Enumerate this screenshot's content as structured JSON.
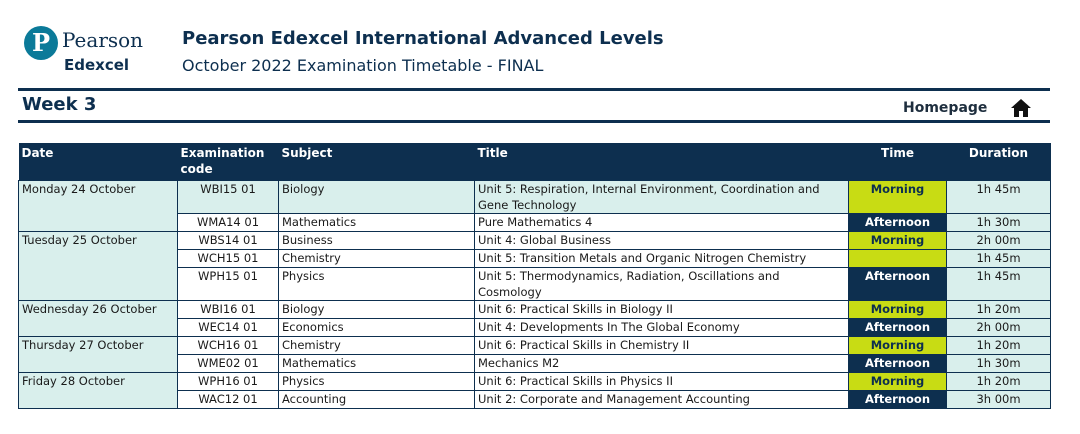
{
  "logo": {
    "glyph": "P",
    "brand": "Pearson",
    "sub": "Edexcel"
  },
  "header": {
    "title": "Pearson Edexcel International Advanced Levels",
    "subtitle": "October 2022 Examination Timetable - FINAL"
  },
  "week": "Week 3",
  "homepage": "Homepage",
  "columns": {
    "date": "Date",
    "code": "Examination code",
    "subject": "Subject",
    "title": "Title",
    "time": "Time",
    "duration": "Duration"
  },
  "rows": [
    {
      "date": "Monday 24 October",
      "code": "WBI15 01",
      "subject": "Biology",
      "title": "Unit 5: Respiration, Internal Environment, Coordination and Gene Technology",
      "time": "Morning",
      "duration": "1h 45m"
    },
    {
      "date": "",
      "code": "WMA14 01",
      "subject": "Mathematics",
      "title": "Pure Mathematics 4",
      "time": "Afternoon",
      "duration": "1h 30m"
    },
    {
      "date": "Tuesday 25 October",
      "code": "WBS14 01",
      "subject": "Business",
      "title": "Unit 4: Global Business",
      "time": "Morning",
      "duration": "2h 00m"
    },
    {
      "date": "",
      "code": "WCH15 01",
      "subject": "Chemistry",
      "title": "Unit 5: Transition Metals and Organic Nitrogen Chemistry",
      "time": "",
      "duration": "1h 45m"
    },
    {
      "date": "",
      "code": "WPH15 01",
      "subject": "Physics",
      "title": "Unit 5: Thermodynamics, Radiation, Oscillations and Cosmology",
      "time": "Afternoon",
      "duration": "1h 45m"
    },
    {
      "date": "Wednesday 26 October",
      "code": "WBI16 01",
      "subject": "Biology",
      "title": "Unit 6: Practical Skills in Biology II",
      "time": "Morning",
      "duration": "1h 20m"
    },
    {
      "date": "",
      "code": "WEC14 01",
      "subject": "Economics",
      "title": "Unit 4: Developments In The Global Economy",
      "time": "Afternoon",
      "duration": "2h 00m"
    },
    {
      "date": "Thursday 27 October",
      "code": "WCH16 01",
      "subject": "Chemistry",
      "title": "Unit 6: Practical Skills in Chemistry II",
      "time": "Morning",
      "duration": "1h 20m"
    },
    {
      "date": "",
      "code": "WME02 01",
      "subject": "Mathematics",
      "title": "Mechanics M2",
      "time": "Afternoon",
      "duration": "1h 30m"
    },
    {
      "date": "Friday 28 October",
      "code": "WPH16 01",
      "subject": "Physics",
      "title": "Unit 6: Practical Skills in Physics II",
      "time": "Morning",
      "duration": "1h 20m"
    },
    {
      "date": "",
      "code": "WAC12 01",
      "subject": "Accounting",
      "title": "Unit 2: Corporate and Management Accounting",
      "time": "Afternoon",
      "duration": "3h 00m"
    }
  ],
  "colors": {
    "navy": "#0d2f4f",
    "morning": "#c8dc14",
    "tint": "#d9efec",
    "logo_teal": "#0b7a99"
  },
  "icons": {
    "home": "home-icon"
  }
}
